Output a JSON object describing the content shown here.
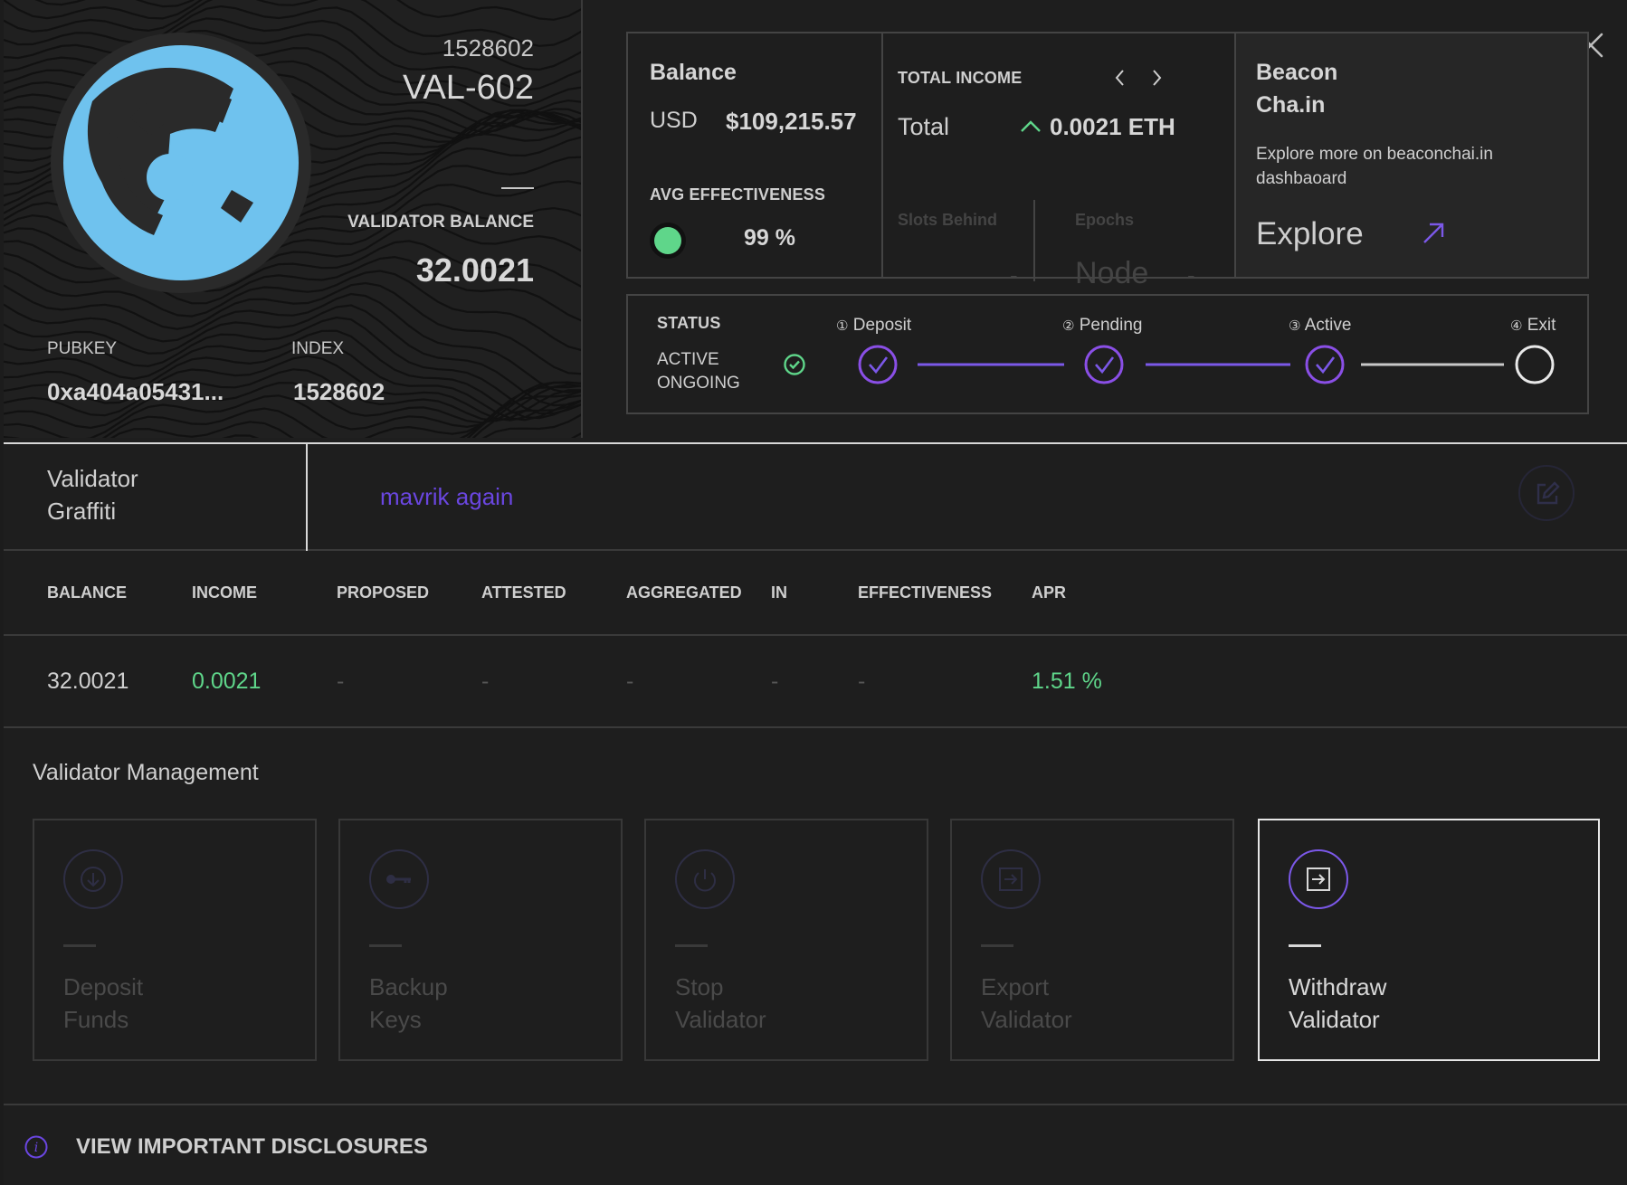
{
  "validator": {
    "number": "1528602",
    "name": "VAL-602",
    "balance_label": "VALIDATOR BALANCE",
    "balance": "32.0021",
    "pubkey_label": "PUBKEY",
    "pubkey": "0xa404a05431...",
    "index_label": "INDEX",
    "index": "1528602"
  },
  "balance_panel": {
    "title": "Balance",
    "currency": "USD",
    "amount": "$109,215.57",
    "effectiveness_label": "AVG EFFECTIVENESS",
    "effectiveness": "99 %"
  },
  "income_panel": {
    "title": "TOTAL INCOME",
    "total_label": "Total",
    "total_value": "0.0021 ETH",
    "slots_label": "Slots Behind",
    "slots_value": "-",
    "epochs_label": "Epochs",
    "epochs_node": "Node",
    "epochs_value": "-"
  },
  "beacon_panel": {
    "title_line1": "Beacon",
    "title_line2": "Cha.in",
    "description": "Explore more on beaconchai.in dashbaoard",
    "explore_label": "Explore"
  },
  "status": {
    "label": "STATUS",
    "state_line1": "ACTIVE",
    "state_line2": "ONGOING",
    "steps": [
      {
        "num": "①",
        "label": "Deposit",
        "done": true
      },
      {
        "num": "②",
        "label": "Pending",
        "done": true
      },
      {
        "num": "③",
        "label": "Active",
        "done": true
      },
      {
        "num": "④",
        "label": "Exit",
        "done": false
      }
    ]
  },
  "graffiti": {
    "label_line1": "Validator",
    "label_line2": "Graffiti",
    "value": "mavrik again"
  },
  "table": {
    "headers": [
      "BALANCE",
      "INCOME",
      "PROPOSED",
      "ATTESTED",
      "AGGREGATED",
      "IN",
      "EFFECTIVENESS",
      "APR"
    ],
    "row": [
      "32.0021",
      "0.0021",
      "-",
      "-",
      "-",
      "-",
      "-",
      "1.51 %"
    ]
  },
  "management": {
    "title": "Validator Management",
    "tiles": [
      {
        "label": "Deposit\nFunds",
        "icon": "download-icon",
        "active": false
      },
      {
        "label": "Backup\nKeys",
        "icon": "key-icon",
        "active": false
      },
      {
        "label": "Stop\nValidator",
        "icon": "power-icon",
        "active": false
      },
      {
        "label": "Export\nValidator",
        "icon": "export-icon",
        "active": false
      },
      {
        "label": "Withdraw\nValidator",
        "icon": "withdraw-icon",
        "active": true
      }
    ]
  },
  "disclosure": {
    "label": "VIEW IMPORTANT DISCLOSURES"
  },
  "colors": {
    "accent_purple": "#7b58e8",
    "positive_green": "#5fd68a",
    "avatar_blue": "#6fc2ee"
  }
}
